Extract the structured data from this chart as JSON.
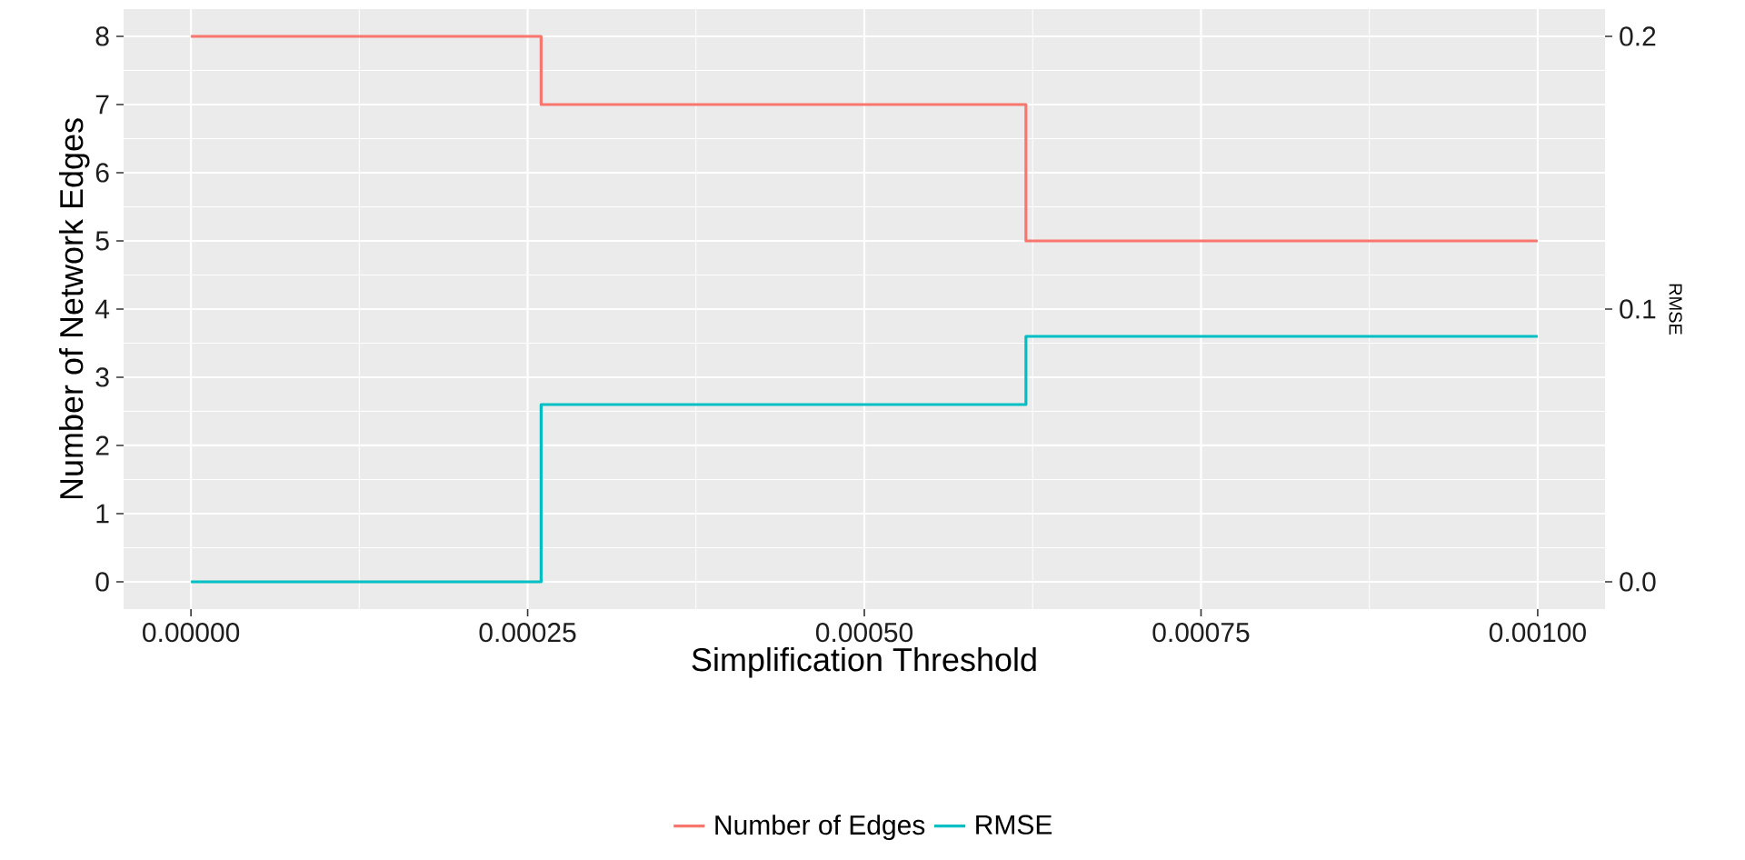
{
  "chart_data": {
    "type": "step",
    "xlabel": "Simplification Threshold",
    "ylabel": "Number of Network Edges",
    "y2label": "RMSE",
    "x": [
      0,
      0.00026,
      0.00062,
      0.001
    ],
    "series": [
      {
        "name": "Number of Edges",
        "color": "#f8766d",
        "values": [
          8,
          7,
          5,
          5
        ]
      },
      {
        "name": "RMSE",
        "color": "#00bfc4",
        "values": [
          0,
          0.065,
          0.09,
          0.09
        ],
        "axis": "y2"
      }
    ],
    "xlim": [
      -5e-05,
      0.00105
    ],
    "xticks": [
      {
        "value": 0,
        "label": "0.00000"
      },
      {
        "value": 0.00025,
        "label": "0.00025"
      },
      {
        "value": 0.0005,
        "label": "0.00050"
      },
      {
        "value": 0.00075,
        "label": "0.00075"
      },
      {
        "value": 0.001,
        "label": "0.00100"
      }
    ],
    "ylim": [
      -0.4,
      8.4
    ],
    "yticks": [
      0,
      1,
      2,
      3,
      4,
      5,
      6,
      7,
      8
    ],
    "y2lim": [
      -0.01,
      0.21
    ],
    "y2ticks": [
      {
        "value": 0,
        "label": "0.0"
      },
      0.1,
      0.2
    ],
    "grid": true,
    "legend": "bottom",
    "line_style": "solid"
  }
}
